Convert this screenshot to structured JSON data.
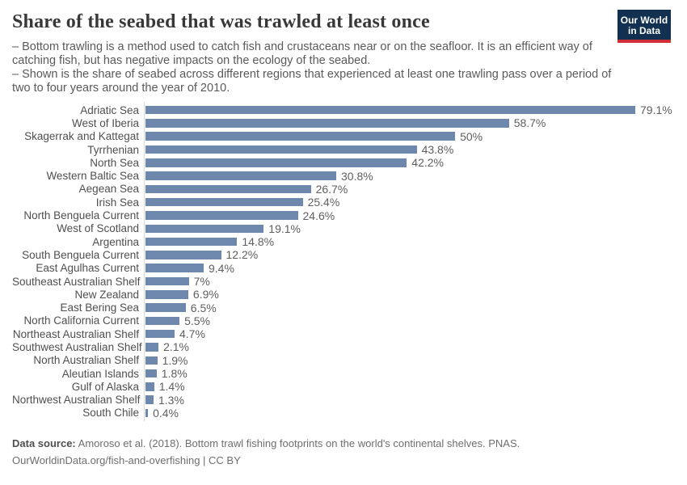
{
  "header": {
    "title": "Share of the seabed that was trawled at least once",
    "subtitle_lines": [
      "– Bottom trawling is a method used to catch fish and crustaceans near or on the seafloor. It is an efficient way of catching fish, but has negative impacts on the ecology of the seabed.",
      "– Shown is the share of seabed across different regions that experienced at least one trawling pass over a period of two to four years around the year of 2010."
    ],
    "logo": {
      "line1": "Our World",
      "line2": "in Data"
    }
  },
  "chart_data": {
    "type": "bar",
    "orientation": "horizontal",
    "title": "Share of the seabed that was trawled at least once",
    "xlabel": "",
    "ylabel": "",
    "xlim": [
      0,
      82
    ],
    "grid": false,
    "legend": null,
    "bar_color": "#6e87ad",
    "categories": [
      "Adriatic Sea",
      "West of Iberia",
      "Skagerrak and Kattegat",
      "Tyrrhenian",
      "North Sea",
      "Western Baltic Sea",
      "Aegean Sea",
      "Irish Sea",
      "North Benguela Current",
      "West of Scotland",
      "Argentina",
      "South Benguela Current",
      "East Agulhas Current",
      "Southeast Australian Shelf",
      "New Zealand",
      "East Bering Sea",
      "North California Current",
      "Northeast Australian Shelf",
      "Southwest Australian Shelf",
      "North Australian Shelf",
      "Aleutian Islands",
      "Gulf of Alaska",
      "Northwest Australian Shelf",
      "South Chile"
    ],
    "values": [
      79.1,
      58.7,
      50,
      43.8,
      42.2,
      30.8,
      26.7,
      25.4,
      24.6,
      19.1,
      14.8,
      12.2,
      9.4,
      7,
      6.9,
      6.5,
      5.5,
      4.7,
      2.1,
      1.9,
      1.8,
      1.4,
      1.3,
      0.4
    ],
    "value_labels": [
      "79.1%",
      "58.7%",
      "50%",
      "43.8%",
      "42.2%",
      "30.8%",
      "26.7%",
      "25.4%",
      "24.6%",
      "19.1%",
      "14.8%",
      "12.2%",
      "9.4%",
      "7%",
      "6.9%",
      "6.5%",
      "5.5%",
      "4.7%",
      "2.1%",
      "1.9%",
      "1.8%",
      "1.4%",
      "1.3%",
      "0.4%"
    ]
  },
  "footer": {
    "source_label": "Data source:",
    "source_text": " Amoroso et al. (2018). Bottom trawl fishing footprints on the world's continental shelves. PNAS.",
    "license_link": "OurWorldinData.org/fish-and-overfishing",
    "license_suffix": " | CC BY"
  },
  "colors": {
    "bar": "#6e87ad",
    "logo_navy": "#12304f",
    "logo_red": "#cf2f36",
    "axis_line": "#d8d8d8"
  }
}
